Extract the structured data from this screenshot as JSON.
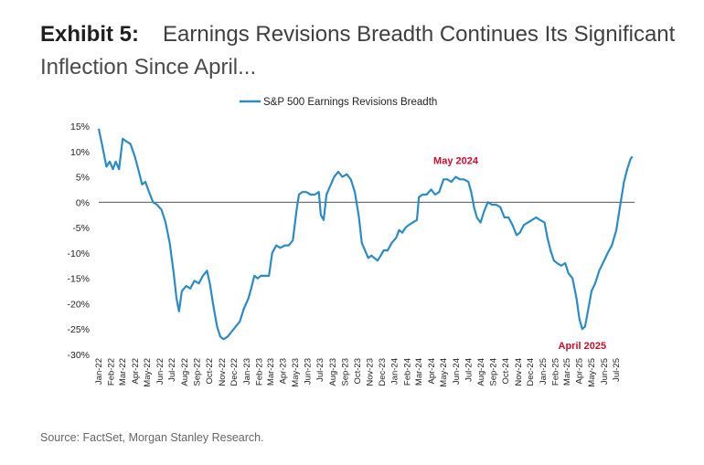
{
  "header": {
    "exhibit": "Exhibit 5:",
    "title_line1": "Earnings Revisions Breadth Continues Its Significant",
    "title_line2": "Inflection Since April..."
  },
  "source": "Source: FactSet, Morgan Stanley Research.",
  "colors": {
    "line": "#2b8cc4",
    "annotation": "#c8102e",
    "zero_line": "#555555"
  },
  "chart_data": {
    "type": "line",
    "title": "Earnings Revisions Breadth Continues Its Significant Inflection Since April...",
    "xlabel": "",
    "ylabel": "",
    "ylim": [
      -30,
      15
    ],
    "yticks": [
      15,
      10,
      5,
      0,
      -5,
      -10,
      -15,
      -20,
      -25,
      -30
    ],
    "ytick_labels": [
      "15%",
      "10%",
      "5%",
      "0%",
      "-5%",
      "-10%",
      "-15%",
      "-20%",
      "-25%",
      "-30%"
    ],
    "xlim": [
      "2022-01-01",
      "2025-08-15"
    ],
    "x_tick_labels": [
      "Jan-22",
      "Feb-22",
      "Mar-22",
      "Apr-22",
      "May-22",
      "Jun-22",
      "Jul-22",
      "Aug-22",
      "Sep-22",
      "Oct-22",
      "Nov-22",
      "Dec-22",
      "Jan-23",
      "Feb-23",
      "Mar-23",
      "Apr-23",
      "May-23",
      "Jun-23",
      "Jul-23",
      "Aug-23",
      "Sep-23",
      "Oct-23",
      "Nov-23",
      "Dec-23",
      "Jan-24",
      "Feb-24",
      "Mar-24",
      "Apr-24",
      "May-24",
      "Jun-24",
      "Jul-24",
      "Aug-24",
      "Sep-24",
      "Oct-24",
      "Nov-24",
      "Dec-24",
      "Jan-25",
      "Feb-25",
      "Mar-25",
      "Apr-25",
      "May-25",
      "Jun-25",
      "Jul-25"
    ],
    "grid": false,
    "legend_position": "top",
    "series": [
      {
        "name": "S&P 500 Earnings Revisions Breadth",
        "points": [
          [
            "2022-01-01",
            14.5
          ],
          [
            "2022-01-10",
            11
          ],
          [
            "2022-01-20",
            7
          ],
          [
            "2022-01-28",
            8
          ],
          [
            "2022-02-05",
            6.5
          ],
          [
            "2022-02-12",
            8
          ],
          [
            "2022-02-20",
            6.5
          ],
          [
            "2022-03-01",
            12.5
          ],
          [
            "2022-03-10",
            12
          ],
          [
            "2022-03-20",
            11.5
          ],
          [
            "2022-03-31",
            9
          ],
          [
            "2022-04-10",
            6
          ],
          [
            "2022-04-18",
            3.5
          ],
          [
            "2022-04-26",
            4
          ],
          [
            "2022-05-05",
            2
          ],
          [
            "2022-05-15",
            0
          ],
          [
            "2022-05-25",
            -0.5
          ],
          [
            "2022-06-05",
            -1.5
          ],
          [
            "2022-06-15",
            -4
          ],
          [
            "2022-06-25",
            -8
          ],
          [
            "2022-07-05",
            -14
          ],
          [
            "2022-07-12",
            -19
          ],
          [
            "2022-07-18",
            -21.5
          ],
          [
            "2022-07-25",
            -17.5
          ],
          [
            "2022-08-05",
            -16.5
          ],
          [
            "2022-08-15",
            -17
          ],
          [
            "2022-08-25",
            -15.5
          ],
          [
            "2022-09-05",
            -16
          ],
          [
            "2022-09-15",
            -14.5
          ],
          [
            "2022-09-25",
            -13.5
          ],
          [
            "2022-10-02",
            -16
          ],
          [
            "2022-10-10",
            -20
          ],
          [
            "2022-10-20",
            -24.5
          ],
          [
            "2022-10-28",
            -26.5
          ],
          [
            "2022-11-05",
            -27
          ],
          [
            "2022-11-15",
            -26.5
          ],
          [
            "2022-11-25",
            -25.5
          ],
          [
            "2022-12-05",
            -24.5
          ],
          [
            "2022-12-15",
            -23.5
          ],
          [
            "2022-12-25",
            -21
          ],
          [
            "2023-01-05",
            -19
          ],
          [
            "2023-01-12",
            -17
          ],
          [
            "2023-01-20",
            -14.5
          ],
          [
            "2023-01-28",
            -15
          ],
          [
            "2023-02-05",
            -14.5
          ],
          [
            "2023-02-15",
            -14.5
          ],
          [
            "2023-02-25",
            -14.5
          ],
          [
            "2023-03-05",
            -10
          ],
          [
            "2023-03-15",
            -8.5
          ],
          [
            "2023-03-25",
            -9
          ],
          [
            "2023-04-05",
            -8.5
          ],
          [
            "2023-04-15",
            -8.5
          ],
          [
            "2023-04-25",
            -7.5
          ],
          [
            "2023-05-05",
            -1
          ],
          [
            "2023-05-10",
            1.5
          ],
          [
            "2023-05-18",
            2
          ],
          [
            "2023-05-28",
            2
          ],
          [
            "2023-06-08",
            1.5
          ],
          [
            "2023-06-18",
            1.5
          ],
          [
            "2023-06-28",
            2
          ],
          [
            "2023-07-03",
            -2.5
          ],
          [
            "2023-07-10",
            -3.5
          ],
          [
            "2023-07-17",
            1.5
          ],
          [
            "2023-07-25",
            3
          ],
          [
            "2023-08-05",
            5
          ],
          [
            "2023-08-15",
            6
          ],
          [
            "2023-08-25",
            5
          ],
          [
            "2023-09-05",
            5.5
          ],
          [
            "2023-09-15",
            4.5
          ],
          [
            "2023-09-25",
            2
          ],
          [
            "2023-10-05",
            -3
          ],
          [
            "2023-10-12",
            -8
          ],
          [
            "2023-10-20",
            -9.5
          ],
          [
            "2023-10-28",
            -11
          ],
          [
            "2023-11-05",
            -10.5
          ],
          [
            "2023-11-12",
            -11
          ],
          [
            "2023-11-20",
            -11.5
          ],
          [
            "2023-11-28",
            -10.5
          ],
          [
            "2023-12-05",
            -9.5
          ],
          [
            "2023-12-15",
            -9.5
          ],
          [
            "2023-12-25",
            -8
          ],
          [
            "2024-01-05",
            -7
          ],
          [
            "2024-01-12",
            -5.5
          ],
          [
            "2024-01-20",
            -6
          ],
          [
            "2024-01-28",
            -5
          ],
          [
            "2024-02-05",
            -4.5
          ],
          [
            "2024-02-15",
            -4
          ],
          [
            "2024-02-25",
            -3.5
          ],
          [
            "2024-03-01",
            1
          ],
          [
            "2024-03-10",
            1.5
          ],
          [
            "2024-03-20",
            1.5
          ],
          [
            "2024-03-31",
            2.5
          ],
          [
            "2024-04-10",
            1.5
          ],
          [
            "2024-04-20",
            2
          ],
          [
            "2024-05-01",
            4.5
          ],
          [
            "2024-05-10",
            4.5
          ],
          [
            "2024-05-20",
            4
          ],
          [
            "2024-05-31",
            5
          ],
          [
            "2024-06-10",
            4.5
          ],
          [
            "2024-06-20",
            4.5
          ],
          [
            "2024-07-01",
            4
          ],
          [
            "2024-07-08",
            2
          ],
          [
            "2024-07-15",
            -1
          ],
          [
            "2024-07-22",
            -3
          ],
          [
            "2024-07-31",
            -4
          ],
          [
            "2024-08-08",
            -2
          ],
          [
            "2024-08-18",
            0
          ],
          [
            "2024-08-28",
            -0.5
          ],
          [
            "2024-09-08",
            -0.5
          ],
          [
            "2024-09-18",
            -1
          ],
          [
            "2024-09-28",
            -3
          ],
          [
            "2024-10-08",
            -3
          ],
          [
            "2024-10-18",
            -4.5
          ],
          [
            "2024-10-28",
            -6.5
          ],
          [
            "2024-11-05",
            -6
          ],
          [
            "2024-11-15",
            -4.5
          ],
          [
            "2024-11-25",
            -4
          ],
          [
            "2024-12-05",
            -3.5
          ],
          [
            "2024-12-15",
            -3
          ],
          [
            "2024-12-25",
            -3.5
          ],
          [
            "2025-01-05",
            -4
          ],
          [
            "2025-01-12",
            -7
          ],
          [
            "2025-01-20",
            -9.5
          ],
          [
            "2025-01-28",
            -11.5
          ],
          [
            "2025-02-05",
            -12
          ],
          [
            "2025-02-15",
            -12.5
          ],
          [
            "2025-02-25",
            -12
          ],
          [
            "2025-03-05",
            -14
          ],
          [
            "2025-03-15",
            -15
          ],
          [
            "2025-03-25",
            -19
          ],
          [
            "2025-04-01",
            -23
          ],
          [
            "2025-04-08",
            -25
          ],
          [
            "2025-04-15",
            -24.5
          ],
          [
            "2025-04-22",
            -21.5
          ],
          [
            "2025-05-01",
            -17.5
          ],
          [
            "2025-05-10",
            -16
          ],
          [
            "2025-05-20",
            -13.5
          ],
          [
            "2025-06-01",
            -11.5
          ],
          [
            "2025-06-10",
            -10
          ],
          [
            "2025-06-20",
            -8.5
          ],
          [
            "2025-07-01",
            -5.5
          ],
          [
            "2025-07-10",
            -1
          ],
          [
            "2025-07-20",
            4
          ],
          [
            "2025-07-28",
            6.5
          ],
          [
            "2025-08-05",
            8.5
          ],
          [
            "2025-08-10",
            9
          ]
        ]
      }
    ],
    "annotations": [
      {
        "text": "May 2024",
        "x": "2024-05-31",
        "y": 5
      },
      {
        "text": "April 2025",
        "x": "2025-04-08",
        "y": -25
      }
    ]
  }
}
